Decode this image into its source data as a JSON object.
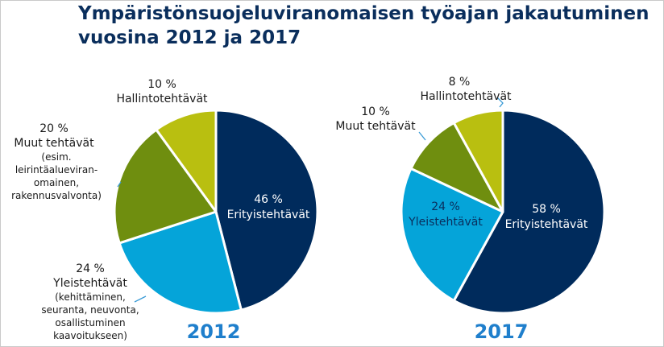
{
  "title_lines": [
    "Ympäristönsuojeluviranomaisen työajan jakautuminen",
    "vuosina 2012 ja 2017"
  ],
  "colors": {
    "erityistehtavat": "#002b5c",
    "yleistehtavat": "#05a4d9",
    "muut_tehtavat": "#6f8e0f",
    "hallintotehtavat": "#b9bf10"
  },
  "chart_data": [
    {
      "type": "pie",
      "year_label": "2012",
      "slices": [
        {
          "key": "erityistehtavat",
          "value": 46,
          "pct_label": "46 %",
          "label": "Erityistehtävät",
          "details": []
        },
        {
          "key": "yleistehtavat",
          "value": 24,
          "pct_label": "24 %",
          "label": "Yleistehtävät",
          "details": [
            "(kehittäminen,",
            "seuranta, neuvonta,",
            "osallistuminen",
            "kaavoitukseen)"
          ]
        },
        {
          "key": "muut_tehtavat",
          "value": 20,
          "pct_label": "20 %",
          "label": "Muut tehtävät",
          "details": [
            "(esim.",
            "leirintäalueviran-",
            "omainen,",
            "rakennusvalvonta)"
          ]
        },
        {
          "key": "hallintotehtavat",
          "value": 10,
          "pct_label": "10 %",
          "label": "Hallintotehtävät",
          "details": []
        }
      ]
    },
    {
      "type": "pie",
      "year_label": "2017",
      "slices": [
        {
          "key": "erityistehtavat",
          "value": 58,
          "pct_label": "58 %",
          "label": "Erityistehtävät",
          "details": []
        },
        {
          "key": "yleistehtavat",
          "value": 24,
          "pct_label": "24 %",
          "label": "Yleistehtävät",
          "details": []
        },
        {
          "key": "muut_tehtavat",
          "value": 10,
          "pct_label": "10 %",
          "label": "Muut tehtävät",
          "details": []
        },
        {
          "key": "hallintotehtavat",
          "value": 8,
          "pct_label": "8 %",
          "label": "Hallintotehtävät",
          "details": []
        }
      ]
    }
  ]
}
